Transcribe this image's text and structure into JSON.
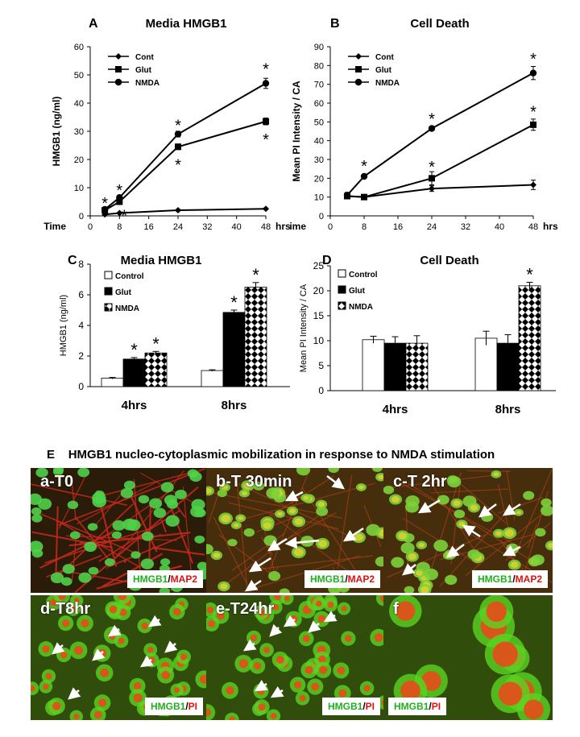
{
  "panel_e": {
    "letter": "E",
    "title": "HMGB1 nucleo-cytoplasmic mobilization in response to NMDA stimulation",
    "images": [
      {
        "label": "a-T0",
        "legend_green": "HMGB1",
        "slash": "/",
        "legend_red": "MAP2"
      },
      {
        "label": "b-T 30min",
        "legend_green": "HMGB1",
        "slash": "/",
        "legend_red": "MAP2"
      },
      {
        "label": "c-T 2hr",
        "legend_green": "HMGB1",
        "slash": "/",
        "legend_red": "MAP2"
      },
      {
        "label": "d-T8hr",
        "legend_green": "HMGB1",
        "slash": "/",
        "legend_red": "PI"
      },
      {
        "label": "e-T24hr",
        "legend_green": "HMGB1",
        "slash": "/",
        "legend_red": "PI"
      },
      {
        "label": "f",
        "legend_green": "HMGB1",
        "slash": "/",
        "legend_red": "PI"
      }
    ]
  },
  "chart_data": [
    {
      "panel": "A",
      "type": "line",
      "title": "Media HMGB1",
      "xlabel": "Time",
      "xunit": "hrs",
      "ylabel": "HMGB1 (ng/ml)",
      "x_ticks": [
        0,
        8,
        16,
        24,
        32,
        40,
        48
      ],
      "y_ticks": [
        0,
        10,
        20,
        30,
        40,
        50,
        60
      ],
      "xlim": [
        0,
        48
      ],
      "ylim": [
        0,
        60
      ],
      "x": [
        4,
        8,
        24,
        48
      ],
      "series": [
        {
          "name": "Cont",
          "marker": "diamond",
          "values": [
            0.5,
            1.0,
            2.0,
            2.5
          ],
          "err": [
            0.2,
            0.2,
            0.3,
            0.3
          ]
        },
        {
          "name": "Glut",
          "marker": "square",
          "values": [
            2.0,
            5.0,
            24.5,
            33.5
          ],
          "err": [
            0.5,
            0.6,
            1.0,
            1.2
          ]
        },
        {
          "name": "NMDA",
          "marker": "circle",
          "values": [
            2.3,
            6.5,
            29.0,
            47.0
          ],
          "err": [
            0.5,
            0.6,
            1.0,
            1.8
          ]
        }
      ],
      "annotations": [
        {
          "text": "*",
          "x": 4,
          "y": 4.8
        },
        {
          "text": "*",
          "x": 8,
          "y": 9.5
        },
        {
          "text": "*",
          "x": 9.3,
          "y": 0.5
        },
        {
          "text": "*",
          "x": 24,
          "y": 32.5
        },
        {
          "text": "*",
          "x": 24,
          "y": 18.5
        },
        {
          "text": "*",
          "x": 48,
          "y": 52.5
        },
        {
          "text": "*",
          "x": 48,
          "y": 27.5
        }
      ]
    },
    {
      "panel": "B",
      "type": "line",
      "title": "Cell Death",
      "xlabel": "Time",
      "xunit": "hrs",
      "ylabel": "Mean PI Intensity / CA",
      "x_ticks": [
        0,
        8,
        16,
        24,
        32,
        40,
        48
      ],
      "y_ticks": [
        0,
        10,
        20,
        30,
        40,
        50,
        60,
        70,
        80,
        90
      ],
      "xlim": [
        0,
        48
      ],
      "ylim": [
        0,
        90
      ],
      "x": [
        4,
        8,
        24,
        48
      ],
      "series": [
        {
          "name": "Cont",
          "marker": "diamond",
          "values": [
            10.5,
            10.0,
            14.5,
            16.5
          ],
          "err": [
            1.5,
            1.0,
            1.5,
            2.5
          ]
        },
        {
          "name": "Glut",
          "marker": "square",
          "values": [
            10.5,
            10.0,
            20.0,
            48.5
          ],
          "err": [
            1.5,
            1.0,
            3.5,
            3.0
          ]
        },
        {
          "name": "NMDA",
          "marker": "circle",
          "values": [
            11.0,
            21.0,
            46.5,
            76.0
          ],
          "err": [
            1.5,
            1.0,
            1.0,
            3.5
          ]
        }
      ],
      "annotations": [
        {
          "text": "*",
          "x": 8,
          "y": 27
        },
        {
          "text": "*",
          "x": 24,
          "y": 52
        },
        {
          "text": "*",
          "x": 24,
          "y": 26.5
        },
        {
          "text": "*",
          "x": 48,
          "y": 84
        },
        {
          "text": "*",
          "x": 48,
          "y": 56
        }
      ]
    },
    {
      "panel": "C",
      "type": "bar",
      "title": "Media HMGB1",
      "xlabel": "",
      "ylabel": "HMGB1 (ng/ml)",
      "categories": [
        "4hrs",
        "8hrs"
      ],
      "y_ticks": [
        0,
        2,
        4,
        6,
        8
      ],
      "ylim": [
        0,
        8
      ],
      "series": [
        {
          "name": "Control",
          "fill": "white",
          "values": [
            0.55,
            1.05
          ],
          "err": [
            0.05,
            0.05
          ],
          "stars": [
            false,
            false
          ]
        },
        {
          "name": "Glut",
          "fill": "black",
          "values": [
            1.8,
            4.85
          ],
          "err": [
            0.1,
            0.15
          ],
          "stars": [
            true,
            true
          ]
        },
        {
          "name": "NMDA",
          "fill": "checker",
          "values": [
            2.2,
            6.5
          ],
          "err": [
            0.1,
            0.3
          ],
          "stars": [
            true,
            true
          ]
        }
      ]
    },
    {
      "panel": "D",
      "type": "bar",
      "title": "Cell Death",
      "xlabel": "",
      "ylabel": "Mean PI Intensity / CA",
      "categories": [
        "4hrs",
        "8hrs"
      ],
      "y_ticks": [
        0,
        5,
        10,
        15,
        20,
        25
      ],
      "ylim": [
        0,
        25
      ],
      "series": [
        {
          "name": "Control",
          "fill": "white",
          "values": [
            10.2,
            10.5
          ],
          "err": [
            0.7,
            1.4
          ],
          "stars": [
            false,
            false
          ]
        },
        {
          "name": "Glut",
          "fill": "black",
          "values": [
            9.5,
            9.5
          ],
          "err": [
            1.3,
            1.7
          ],
          "stars": [
            false,
            false
          ]
        },
        {
          "name": "NMDA",
          "fill": "checker",
          "values": [
            9.5,
            21.0
          ],
          "err": [
            1.5,
            0.7
          ],
          "stars": [
            false,
            true
          ]
        }
      ]
    }
  ]
}
